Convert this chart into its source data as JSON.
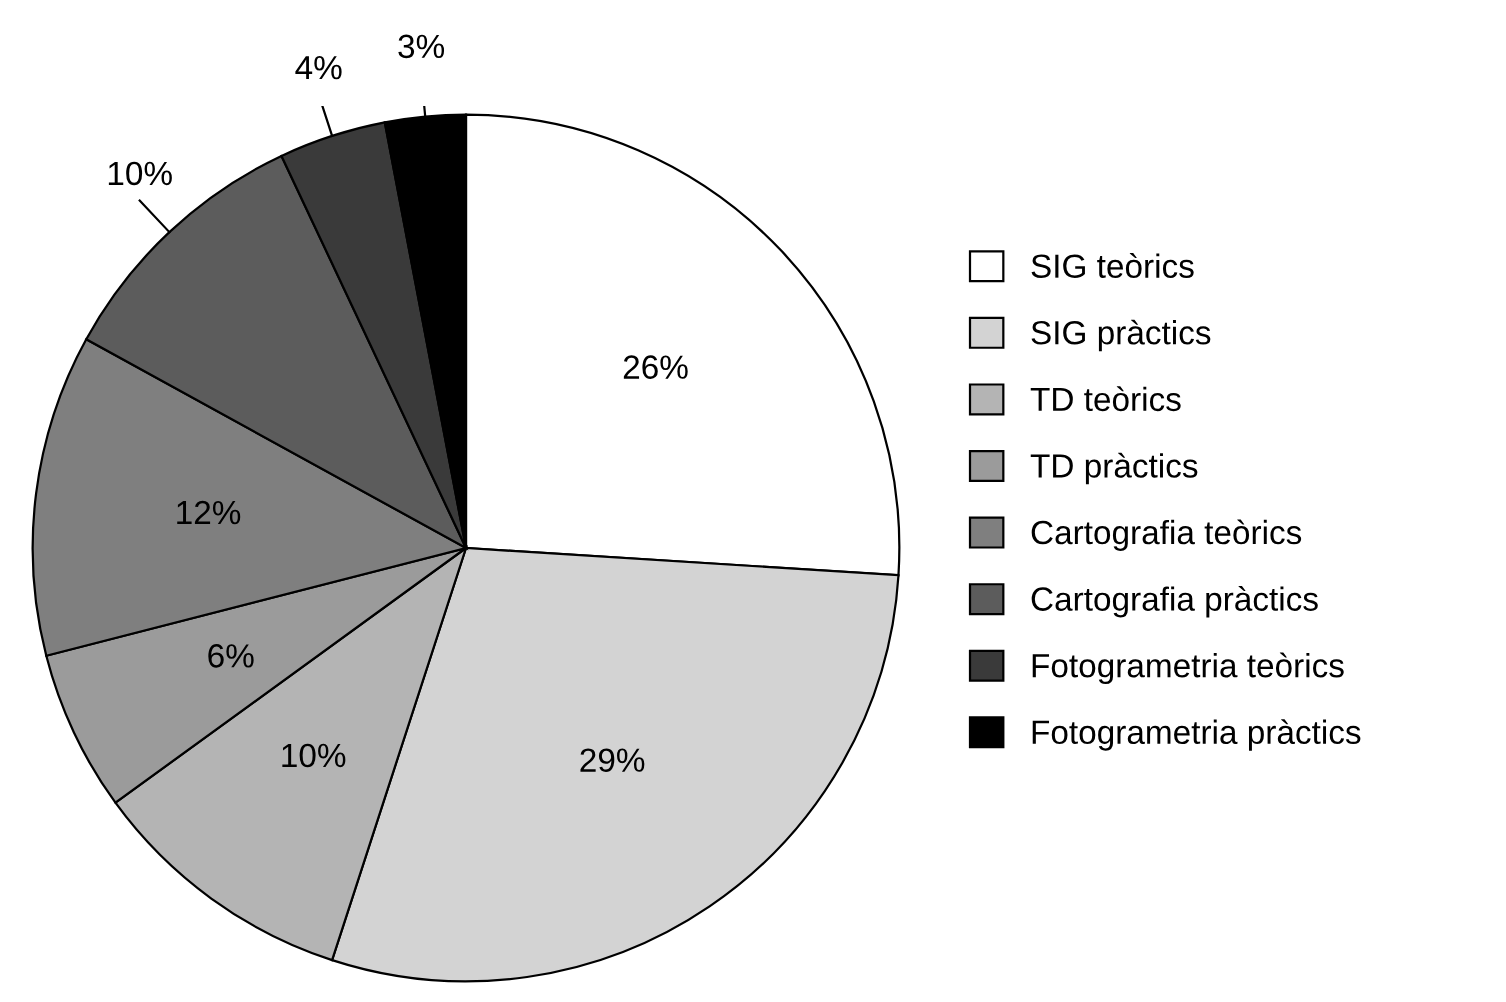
{
  "chart_data": {
    "type": "pie",
    "categories": [
      "SIG teòrics",
      "SIG pràctics",
      "TD teòrics",
      "TD pràctics",
      "Cartografia teòrics",
      "Cartografia pràctics",
      "Fotogrametria teòrics",
      "Fotogrametria pràctics"
    ],
    "values": [
      26,
      29,
      10,
      6,
      12,
      10,
      4,
      3
    ],
    "value_labels": [
      "26%",
      "29%",
      "10%",
      "6%",
      "12%",
      "10%",
      "4%",
      "3%"
    ],
    "colors": [
      "#ffffff",
      "#d3d3d3",
      "#b4b4b4",
      "#9b9b9b",
      "#7f7f7f",
      "#5c5c5c",
      "#3a3a3a",
      "#000000"
    ],
    "legend": "right"
  }
}
